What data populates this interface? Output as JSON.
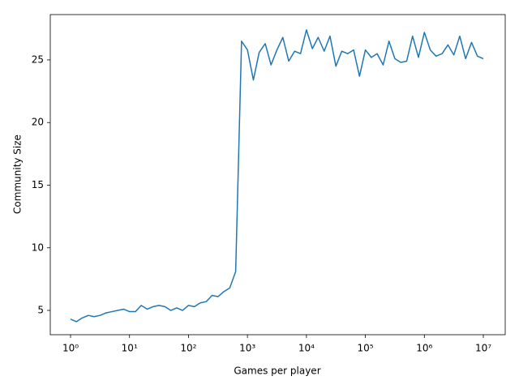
{
  "chart_data": {
    "type": "line",
    "x_label": "Games per player",
    "y_label": "Community Size",
    "x_scale": "log",
    "color": "#1f77b4",
    "grid": false,
    "x": [
      1,
      1.26,
      1.58,
      2,
      2.51,
      3.16,
      3.98,
      5.01,
      6.31,
      7.94,
      10,
      12.6,
      15.8,
      20,
      25.1,
      31.6,
      39.8,
      50.1,
      63.1,
      79.4,
      100,
      126,
      158,
      200,
      251,
      316,
      398,
      501,
      631,
      794,
      1000,
      1260,
      1580,
      2000,
      2510,
      3160,
      3980,
      5010,
      6310,
      7940,
      10000,
      12600,
      15800,
      20000,
      25100,
      31600,
      39800,
      50100,
      63100,
      79400,
      100000,
      126000,
      158000,
      200000,
      251000,
      316000,
      398000,
      501000,
      631000,
      794000,
      1000000,
      1260000,
      1580000,
      2000000,
      2510000,
      3160000,
      3980000,
      5010000,
      6310000,
      7940000,
      10000000
    ],
    "values": [
      4.3,
      4.1,
      4.4,
      4.6,
      4.5,
      4.6,
      4.8,
      4.9,
      5.0,
      5.1,
      4.9,
      4.9,
      5.4,
      5.1,
      5.3,
      5.4,
      5.3,
      5.0,
      5.2,
      5.0,
      5.4,
      5.3,
      5.6,
      5.7,
      6.2,
      6.1,
      6.5,
      6.8,
      8.1,
      26.5,
      25.8,
      23.4,
      25.6,
      26.3,
      24.6,
      25.8,
      26.8,
      24.9,
      25.7,
      25.5,
      27.4,
      25.9,
      26.8,
      25.7,
      26.9,
      24.5,
      25.7,
      25.5,
      25.8,
      23.7,
      25.8,
      25.2,
      25.5,
      24.6,
      26.5,
      25.1,
      24.8,
      24.9,
      26.9,
      25.2,
      27.2,
      25.8,
      25.3,
      25.5,
      26.2,
      25.4,
      26.9,
      25.1,
      26.4,
      25.3,
      25.1
    ],
    "xlim": [
      0.453,
      23500000
    ],
    "ylim": [
      3.06,
      28.62
    ],
    "xticks": [
      {
        "value": 1,
        "label": "10⁰"
      },
      {
        "value": 10,
        "label": "10¹"
      },
      {
        "value": 100,
        "label": "10²"
      },
      {
        "value": 1000,
        "label": "10³"
      },
      {
        "value": 10000,
        "label": "10⁴"
      },
      {
        "value": 100000,
        "label": "10⁵"
      },
      {
        "value": 1000000,
        "label": "10⁶"
      },
      {
        "value": 10000000,
        "label": "10⁷"
      }
    ],
    "yticks": [
      5,
      10,
      15,
      20,
      25
    ]
  }
}
